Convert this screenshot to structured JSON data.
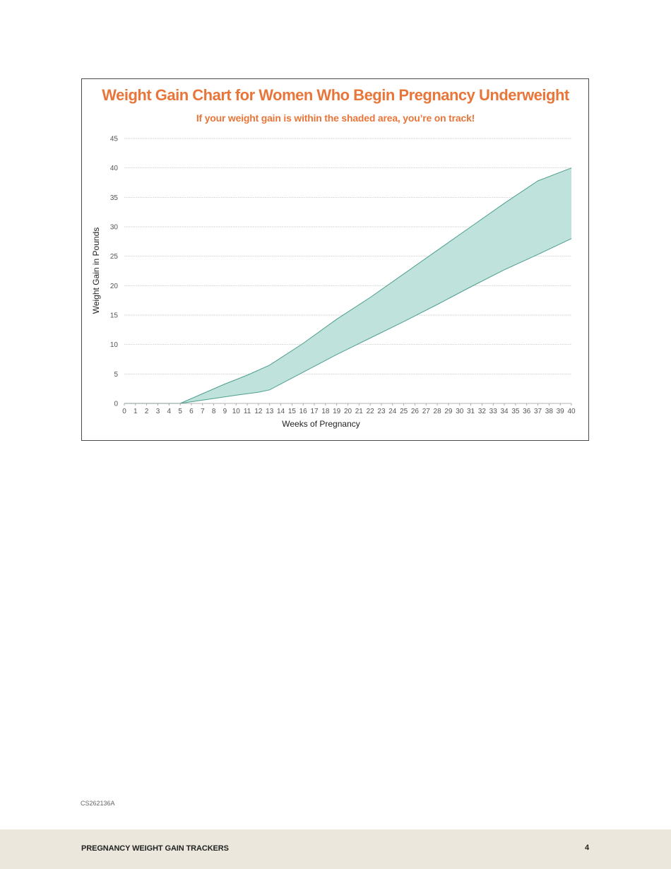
{
  "page": {
    "doc_code": "CS262136A",
    "footer_title": "PREGNANCY WEIGHT GAIN TRACKERS",
    "page_number": "4"
  },
  "colors": {
    "title": "#e8763a",
    "band_fill": "#bfe3dc",
    "band_line": "#4d9e8d",
    "grid": "#b5b5b5",
    "axis_text": "#555555"
  },
  "chart_data": {
    "type": "area",
    "title": "Weight Gain Chart for Women Who Begin Pregnancy Underweight",
    "subtitle": "If your weight gain is within the shaded area, you’re on track!",
    "xlabel": "Weeks of Pregnancy",
    "ylabel": "Weight Gain in Pounds",
    "xlim": [
      0,
      40
    ],
    "ylim": [
      0,
      45
    ],
    "yticks": [
      0,
      5,
      10,
      15,
      20,
      25,
      30,
      35,
      40,
      45
    ],
    "xticks": [
      0,
      1,
      2,
      3,
      4,
      5,
      6,
      7,
      8,
      9,
      10,
      11,
      12,
      13,
      14,
      15,
      16,
      17,
      18,
      19,
      20,
      21,
      22,
      23,
      24,
      25,
      26,
      27,
      28,
      29,
      30,
      31,
      32,
      33,
      34,
      35,
      36,
      37,
      38,
      39,
      40
    ],
    "grid": true,
    "upper": {
      "x": [
        0,
        5,
        9,
        11,
        13,
        16,
        19,
        22,
        25,
        28,
        31,
        34,
        37,
        40
      ],
      "y": [
        0,
        0,
        3.3,
        4.8,
        6.5,
        10.2,
        14.3,
        18.0,
        22.0,
        26.0,
        30.0,
        34.0,
        37.8,
        40.0
      ]
    },
    "lower": {
      "x": [
        0,
        5,
        10,
        12,
        13,
        16,
        19,
        22,
        25,
        28,
        31,
        34,
        37,
        40
      ],
      "y": [
        0,
        0,
        1.4,
        1.9,
        2.3,
        5.3,
        8.3,
        11.1,
        13.9,
        16.8,
        19.8,
        22.7,
        25.3,
        28.0
      ]
    }
  }
}
